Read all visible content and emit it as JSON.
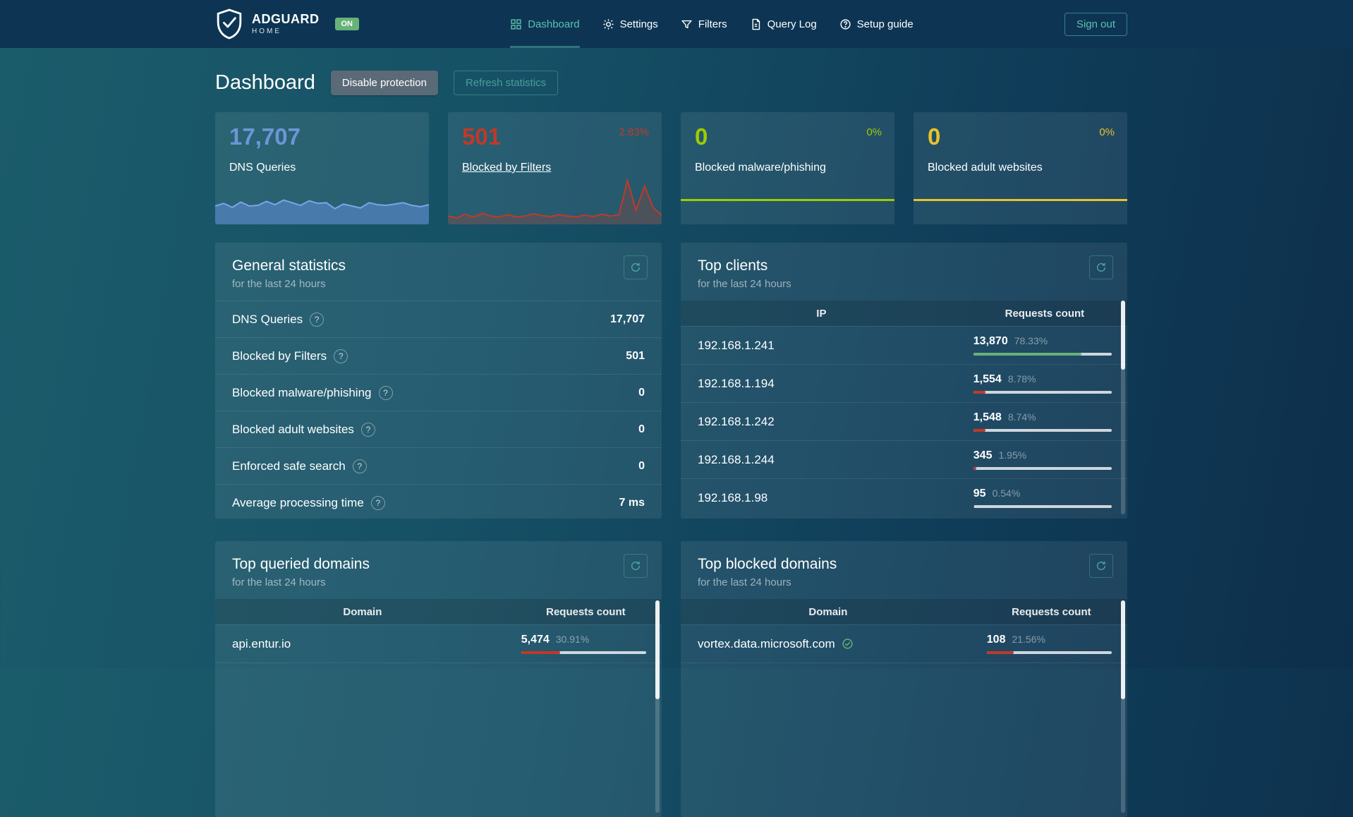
{
  "theme": {
    "accent": "#5cc0b0",
    "green": "#67b279",
    "red": "#c13928"
  },
  "header": {
    "brand": {
      "name": "ADGUARD",
      "sub": "HOME",
      "badge": "ON"
    },
    "nav": [
      {
        "label": "Dashboard"
      },
      {
        "label": "Settings"
      },
      {
        "label": "Filters"
      },
      {
        "label": "Query Log"
      },
      {
        "label": "Setup guide"
      }
    ],
    "sign_out": "Sign out"
  },
  "page": {
    "title": "Dashboard",
    "buttons": {
      "disable": "Disable protection",
      "refresh": "Refresh statistics"
    }
  },
  "cards": [
    {
      "value": "17,707",
      "label": "DNS Queries",
      "color": "#6b96d6",
      "spark": {
        "values": [
          5,
          5.8,
          4.6,
          6.2,
          5,
          5.2,
          6.4,
          5.4,
          6.8,
          6,
          5.2,
          6.6,
          5.8,
          6,
          4.2,
          5.6,
          5,
          4.4,
          6,
          5.4,
          5.2,
          5.6,
          6,
          5.2,
          4.8,
          5.4
        ],
        "stroke": "#7aa5e8",
        "fill": "rgba(98,142,219,0.55)"
      }
    },
    {
      "value": "501",
      "label": "Blocked by Filters",
      "percent": "2.83%",
      "color": "#c13928",
      "spark": {
        "values": [
          1.2,
          0.8,
          1.6,
          1,
          1.8,
          1.2,
          1,
          1.5,
          1,
          1.2,
          1.7,
          1.3,
          1.1,
          1.5,
          1.2,
          1,
          1.4,
          1.1,
          1.6,
          1.2,
          1.5,
          8.8,
          2.4,
          7.6,
          3,
          1.4
        ],
        "stroke": "#c13928",
        "fill": "rgba(150,70,60,0.35)"
      }
    },
    {
      "value": "0",
      "label": "Blocked malware/phishing",
      "percent": "0%",
      "color": "#9ccc00"
    },
    {
      "value": "0",
      "label": "Blocked adult websites",
      "percent": "0%",
      "color": "#e8c22b"
    }
  ],
  "general": {
    "title": "General statistics",
    "subtitle": "for the last 24 hours",
    "rows": [
      {
        "label": "DNS Queries",
        "value": "17,707"
      },
      {
        "label": "Blocked by Filters",
        "value": "501"
      },
      {
        "label": "Blocked malware/phishing",
        "value": "0"
      },
      {
        "label": "Blocked adult websites",
        "value": "0"
      },
      {
        "label": "Enforced safe search",
        "value": "0"
      },
      {
        "label": "Average processing time",
        "value": "7 ms"
      }
    ]
  },
  "clients": {
    "title": "Top clients",
    "subtitle": "for the last 24 hours",
    "columns": [
      "IP",
      "Requests count"
    ],
    "rows": [
      {
        "ip": "192.168.1.241",
        "count": "13,870",
        "percent": "78.33%",
        "bar": 78.33,
        "color": "#67b279"
      },
      {
        "ip": "192.168.1.194",
        "count": "1,554",
        "percent": "8.78%",
        "bar": 8.78,
        "color": "#c13928"
      },
      {
        "ip": "192.168.1.242",
        "count": "1,548",
        "percent": "8.74%",
        "bar": 8.74,
        "color": "#c13928"
      },
      {
        "ip": "192.168.1.244",
        "count": "345",
        "percent": "1.95%",
        "bar": 1.95,
        "color": "#c13928"
      },
      {
        "ip": "192.168.1.98",
        "count": "95",
        "percent": "0.54%",
        "bar": 0.54,
        "color": "#c13928"
      }
    ]
  },
  "queried": {
    "title": "Top queried domains",
    "subtitle": "for the last 24 hours",
    "columns": [
      "Domain",
      "Requests count"
    ],
    "rows": [
      {
        "domain": "api.entur.io",
        "count": "5,474",
        "percent": "30.91%",
        "bar": 30.91,
        "color": "#c13928"
      }
    ]
  },
  "blocked": {
    "title": "Top blocked domains",
    "subtitle": "for the last 24 hours",
    "columns": [
      "Domain",
      "Requests count"
    ],
    "rows": [
      {
        "domain": "vortex.data.microsoft.com",
        "count": "108",
        "percent": "21.56%",
        "bar": 21.56,
        "color": "#c13928"
      }
    ]
  }
}
